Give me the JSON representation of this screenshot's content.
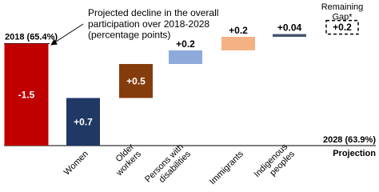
{
  "chart_data": {
    "type": "waterfall",
    "start": {
      "label": "2018 (65.4%)",
      "value": 65.4
    },
    "end": {
      "label": "2028 (63.9%)",
      "value": 63.9
    },
    "end_caption": "Projection",
    "annotation": "Projected decline in the overall\nparticipation over 2018-2028\n(percentage points)",
    "categories": [
      null,
      "Women",
      "Older\nworkers",
      "Persons with\ndisabilities",
      "Immigrants",
      "Indigenous\npeoples",
      "Remaining\nGap*"
    ],
    "values": [
      -1.5,
      0.7,
      0.5,
      0.2,
      0.2,
      0.04,
      0.2
    ],
    "value_labels": [
      "-1.5",
      "+0.7",
      "+0.5",
      "+0.2",
      "+0.2",
      "+0.04",
      "+0.2"
    ],
    "colors": [
      "#c00000",
      "#1f3864",
      "#843c0c",
      "#8eaadb",
      "#f4b183",
      "#44546a",
      "none"
    ],
    "dashed": [
      false,
      false,
      false,
      false,
      false,
      false,
      true
    ]
  }
}
